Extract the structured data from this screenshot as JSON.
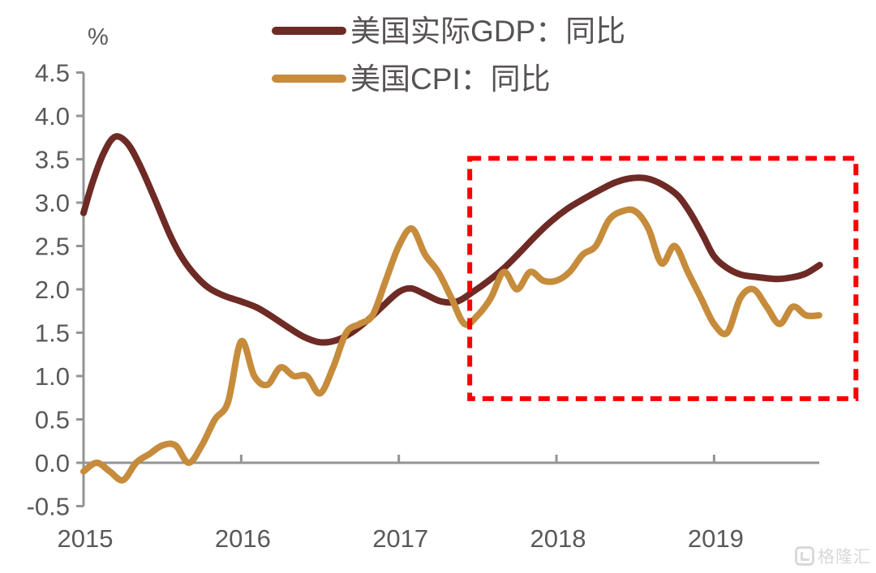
{
  "page": {
    "background": "#ffffff"
  },
  "axis_unit_label": "%",
  "legend": [
    {
      "label": "美国实际GDP：同比",
      "color": "#6e2a25"
    },
    {
      "label": "美国CPI：同比",
      "color": "#c68c3c"
    }
  ],
  "watermark": {
    "text": "格隆汇"
  },
  "colors": {
    "gdp_line": "#6e2a25",
    "cpi_line": "#c68c3c",
    "axis": "#949494",
    "tick_label": "#58595b",
    "legend_text": "#575355",
    "highlight_box": "#fa0000",
    "watermark": "#d9d9d9"
  },
  "chart_data": {
    "type": "line",
    "title": "",
    "xlabel": "",
    "ylabel": "%",
    "ylim": [
      -0.5,
      4.5
    ],
    "ytick_step": 0.5,
    "yticks": [
      "4.5",
      "4.0",
      "3.5",
      "3.0",
      "2.5",
      "2.0",
      "1.5",
      "1.0",
      "0.5",
      "0.0",
      "-0.5"
    ],
    "xticks": [
      "2015",
      "2016",
      "2017",
      "2018",
      "2019"
    ],
    "x_range_years": [
      2015.0,
      2019.667
    ],
    "grid": false,
    "legend_position": "top-center",
    "series": [
      {
        "name": "美国实际GDP：同比",
        "color": "#6e2a25",
        "stroke_width": 8,
        "unit": "%",
        "points": [
          [
            2015.0,
            2.88
          ],
          [
            2015.06,
            3.25
          ],
          [
            2015.13,
            3.58
          ],
          [
            2015.2,
            3.76
          ],
          [
            2015.28,
            3.68
          ],
          [
            2015.36,
            3.42
          ],
          [
            2015.45,
            3.05
          ],
          [
            2015.55,
            2.62
          ],
          [
            2015.63,
            2.35
          ],
          [
            2015.72,
            2.14
          ],
          [
            2015.8,
            2.01
          ],
          [
            2015.9,
            1.92
          ],
          [
            2016.0,
            1.86
          ],
          [
            2016.1,
            1.79
          ],
          [
            2016.2,
            1.68
          ],
          [
            2016.3,
            1.56
          ],
          [
            2016.4,
            1.45
          ],
          [
            2016.5,
            1.39
          ],
          [
            2016.6,
            1.41
          ],
          [
            2016.7,
            1.5
          ],
          [
            2016.8,
            1.64
          ],
          [
            2016.9,
            1.81
          ],
          [
            2017.0,
            1.97
          ],
          [
            2017.08,
            2.01
          ],
          [
            2017.17,
            1.94
          ],
          [
            2017.27,
            1.86
          ],
          [
            2017.37,
            1.86
          ],
          [
            2017.47,
            1.97
          ],
          [
            2017.57,
            2.1
          ],
          [
            2017.67,
            2.25
          ],
          [
            2017.77,
            2.43
          ],
          [
            2017.87,
            2.62
          ],
          [
            2017.97,
            2.79
          ],
          [
            2018.07,
            2.93
          ],
          [
            2018.17,
            3.04
          ],
          [
            2018.27,
            3.14
          ],
          [
            2018.37,
            3.23
          ],
          [
            2018.47,
            3.28
          ],
          [
            2018.57,
            3.28
          ],
          [
            2018.67,
            3.21
          ],
          [
            2018.77,
            3.08
          ],
          [
            2018.85,
            2.88
          ],
          [
            2018.93,
            2.62
          ],
          [
            2019.0,
            2.38
          ],
          [
            2019.08,
            2.25
          ],
          [
            2019.17,
            2.17
          ],
          [
            2019.28,
            2.14
          ],
          [
            2019.4,
            2.12
          ],
          [
            2019.5,
            2.14
          ],
          [
            2019.58,
            2.18
          ],
          [
            2019.67,
            2.28
          ]
        ]
      },
      {
        "name": "美国CPI：同比",
        "color": "#c68c3c",
        "stroke_width": 8,
        "unit": "%",
        "frequency": "monthly",
        "start_year": 2015,
        "start_month": 1,
        "values": [
          -0.1,
          0.0,
          -0.1,
          -0.2,
          0.0,
          0.1,
          0.2,
          0.2,
          0.0,
          0.2,
          0.5,
          0.7,
          1.4,
          1.0,
          0.9,
          1.1,
          1.0,
          1.0,
          0.8,
          1.1,
          1.5,
          1.6,
          1.7,
          2.1,
          2.5,
          2.7,
          2.4,
          2.2,
          1.9,
          1.6,
          1.7,
          1.9,
          2.2,
          2.0,
          2.2,
          2.1,
          2.1,
          2.2,
          2.4,
          2.5,
          2.8,
          2.9,
          2.9,
          2.7,
          2.3,
          2.5,
          2.2,
          1.9,
          1.6,
          1.5,
          1.9,
          2.0,
          1.8,
          1.6,
          1.8,
          1.7,
          1.7
        ]
      }
    ],
    "annotation_box": {
      "shape": "rectangle",
      "style": "dashed",
      "color": "#fa0000",
      "t_start": 2017.45,
      "t_end": 2019.9,
      "v_top": 3.51,
      "v_bottom": 0.74
    }
  }
}
